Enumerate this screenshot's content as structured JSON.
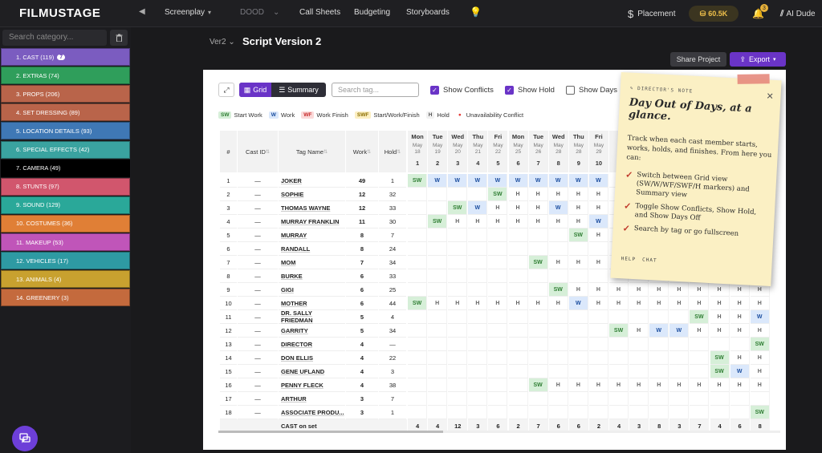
{
  "app": {
    "logo": "FILMUSTAGE"
  },
  "topnav": {
    "items": [
      {
        "label": "Screenplay",
        "caret": "▾"
      },
      {
        "label": "DOOD",
        "caret": "⌄"
      },
      {
        "label": "Call Sheets"
      },
      {
        "label": "Budgeting"
      },
      {
        "label": "Storyboards"
      }
    ],
    "placement": "Placement",
    "coins": "60.5K",
    "bell_count": "3",
    "ai": "AI Dude"
  },
  "sidebar": {
    "search_placeholder": "Search category...",
    "categories": [
      {
        "label": "1.  CAST (119)",
        "badge": "7",
        "color": "#7b5cc0"
      },
      {
        "label": "2.  EXTRAS (74)",
        "color": "#2f9e5b"
      },
      {
        "label": "3.  PROPS (206)",
        "color": "#b9644a"
      },
      {
        "label": "4.  SET DRESSING (89)",
        "color": "#b9644a"
      },
      {
        "label": "5.  LOCATION DETAILS (93)",
        "color": "#3f78b5"
      },
      {
        "label": "6.  SPECIAL EFFECTS (42)",
        "color": "#3aa3a0"
      },
      {
        "label": "7.  CAMERA (49)",
        "color": "#000000"
      },
      {
        "label": "8.  STUNTS (97)",
        "color": "#d1566d"
      },
      {
        "label": "9.  SOUND (129)",
        "color": "#2aa899"
      },
      {
        "label": "10.  COSTUMES (36)",
        "color": "#e07f36"
      },
      {
        "label": "11.  MAKEUP (53)",
        "color": "#c055b9"
      },
      {
        "label": "12.  VEHICLES (17)",
        "color": "#2e9aa3"
      },
      {
        "label": "13.  ANIMALS (4)",
        "color": "#c8a12f"
      },
      {
        "label": "14.  GREENERY (3)",
        "color": "#c46a3d"
      }
    ]
  },
  "header": {
    "version": "Ver2",
    "script_name": "Script Version 2",
    "share": "Share Project",
    "export": "Export"
  },
  "toolbar": {
    "grid": "Grid",
    "summary": "Summary",
    "search_placeholder": "Search tag...",
    "show_conflicts": "Show Conflicts",
    "show_hold": "Show Hold",
    "show_days_off": "Show Days"
  },
  "legend": [
    {
      "mark": "SW",
      "label": "Start Work",
      "bg": "#d6efd8",
      "fg": "#2e7d32"
    },
    {
      "mark": "W",
      "label": "Work",
      "bg": "#dbe8fb",
      "fg": "#1d4fa0"
    },
    {
      "mark": "WF",
      "label": "Work Finish",
      "bg": "#fbd9d9",
      "fg": "#c62828"
    },
    {
      "mark": "SWF",
      "label": "Start/Work/Finish",
      "bg": "#fcefc2",
      "fg": "#8a6d00"
    },
    {
      "mark": "H",
      "label": "Hold",
      "bg": "#f1f1f1",
      "fg": "#555"
    },
    {
      "mark": "●",
      "label": "Unavailability Conflict",
      "bg": "transparent",
      "fg": "#e53935"
    }
  ],
  "table": {
    "headers": {
      "num": "#",
      "castid": "Cast ID",
      "tag": "Tag Name",
      "work": "Work",
      "hold": "Hold"
    },
    "days": [
      {
        "dow": "Mon",
        "date": "May 18",
        "n": "1"
      },
      {
        "dow": "Tue",
        "date": "May 19",
        "n": "2"
      },
      {
        "dow": "Wed",
        "date": "May 20",
        "n": "3"
      },
      {
        "dow": "Thu",
        "date": "May 21",
        "n": "4"
      },
      {
        "dow": "Fri",
        "date": "May 22",
        "n": "5"
      },
      {
        "dow": "Mon",
        "date": "May 25",
        "n": "6"
      },
      {
        "dow": "Tue",
        "date": "May 26",
        "n": "7"
      },
      {
        "dow": "Wed",
        "date": "May 28",
        "n": "8"
      },
      {
        "dow": "Thu",
        "date": "May 28",
        "n": "9"
      },
      {
        "dow": "Fri",
        "date": "May 29",
        "n": "10"
      },
      {
        "dow": "",
        "date": "",
        "n": ""
      },
      {
        "dow": "",
        "date": "",
        "n": ""
      },
      {
        "dow": "",
        "date": "",
        "n": ""
      },
      {
        "dow": "",
        "date": "",
        "n": ""
      },
      {
        "dow": "",
        "date": "",
        "n": ""
      },
      {
        "dow": "",
        "date": "",
        "n": ""
      },
      {
        "dow": "",
        "date": "",
        "n": ""
      },
      {
        "dow": "",
        "date": "",
        "n": ""
      }
    ],
    "rows": [
      {
        "n": "1",
        "id": "—",
        "tag": "JOKER",
        "work": "49",
        "hold": "1",
        "cells": [
          "SW",
          "W",
          "W",
          "W",
          "W",
          "W",
          "W",
          "W",
          "W",
          "W",
          "",
          "",
          "",
          "",
          "",
          "",
          "",
          ""
        ]
      },
      {
        "n": "2",
        "id": "—",
        "tag": "SOPHIE",
        "work": "12",
        "hold": "32",
        "cells": [
          "",
          "",
          "",
          "",
          "SW",
          "H",
          "H",
          "H",
          "H",
          "H",
          "",
          "",
          "",
          "",
          "",
          "",
          "",
          ""
        ]
      },
      {
        "n": "3",
        "id": "—",
        "tag": "THOMAS WAYNE",
        "work": "12",
        "hold": "33",
        "cells": [
          "",
          "",
          "SW",
          "W",
          "H",
          "H",
          "H",
          "W",
          "H",
          "H",
          "",
          "",
          "",
          "",
          "",
          "",
          "",
          ""
        ]
      },
      {
        "n": "4",
        "id": "—",
        "tag": "MURRAY FRANKLIN",
        "work": "11",
        "hold": "30",
        "cells": [
          "",
          "SW",
          "H",
          "H",
          "H",
          "H",
          "H",
          "H",
          "H",
          "W",
          "",
          "",
          "",
          "",
          "",
          "",
          "",
          ""
        ]
      },
      {
        "n": "5",
        "id": "—",
        "tag": "MURRAY",
        "work": "8",
        "hold": "7",
        "cells": [
          "",
          "",
          "",
          "",
          "",
          "",
          "",
          "",
          "SW",
          "H",
          "",
          "",
          "",
          "",
          "",
          "",
          "",
          ""
        ]
      },
      {
        "n": "6",
        "id": "—",
        "tag": "RANDALL",
        "work": "8",
        "hold": "24",
        "cells": [
          "",
          "",
          "",
          "",
          "",
          "",
          "",
          "",
          "",
          "",
          "",
          "",
          "",
          "",
          "",
          "",
          "",
          ""
        ]
      },
      {
        "n": "7",
        "id": "—",
        "tag": "MOM",
        "work": "7",
        "hold": "34",
        "cells": [
          "",
          "",
          "",
          "",
          "",
          "",
          "SW",
          "H",
          "H",
          "H",
          "",
          "",
          "",
          "",
          "",
          "",
          "",
          ""
        ]
      },
      {
        "n": "8",
        "id": "—",
        "tag": "BURKE",
        "work": "6",
        "hold": "33",
        "cells": [
          "",
          "",
          "",
          "",
          "",
          "",
          "",
          "",
          "",
          "",
          "",
          "",
          "",
          "",
          "",
          "",
          "",
          ""
        ]
      },
      {
        "n": "9",
        "id": "—",
        "tag": "GIGI",
        "work": "6",
        "hold": "25",
        "cells": [
          "",
          "",
          "",
          "",
          "",
          "",
          "",
          "SW",
          "H",
          "H",
          "H",
          "H",
          "H",
          "H",
          "H",
          "H",
          "H",
          "H"
        ]
      },
      {
        "n": "10",
        "id": "—",
        "tag": "MOTHER",
        "work": "6",
        "hold": "44",
        "cells": [
          "SW",
          "H",
          "H",
          "H",
          "H",
          "H",
          "H",
          "H",
          "W",
          "H",
          "H",
          "H",
          "H",
          "H",
          "H",
          "H",
          "H",
          "H"
        ]
      },
      {
        "n": "11",
        "id": "—",
        "tag": "DR. SALLY FRIEDMAN",
        "work": "5",
        "hold": "4",
        "cells": [
          "",
          "",
          "",
          "",
          "",
          "",
          "",
          "",
          "",
          "",
          "",
          "",
          "",
          "",
          "SW",
          "H",
          "H",
          "W"
        ]
      },
      {
        "n": "12",
        "id": "—",
        "tag": "GARRITY",
        "work": "5",
        "hold": "34",
        "cells": [
          "",
          "",
          "",
          "",
          "",
          "",
          "",
          "",
          "",
          "",
          "SW",
          "H",
          "W",
          "W",
          "H",
          "H",
          "H",
          "H"
        ]
      },
      {
        "n": "13",
        "id": "—",
        "tag": "DIRECTOR",
        "work": "4",
        "hold": "—",
        "cells": [
          "",
          "",
          "",
          "",
          "",
          "",
          "",
          "",
          "",
          "",
          "",
          "",
          "",
          "",
          "",
          "",
          "",
          "SW"
        ]
      },
      {
        "n": "14",
        "id": "—",
        "tag": "DON ELLIS",
        "work": "4",
        "hold": "22",
        "cells": [
          "",
          "",
          "",
          "",
          "",
          "",
          "",
          "",
          "",
          "",
          "",
          "",
          "",
          "",
          "",
          "SW",
          "H",
          "H"
        ]
      },
      {
        "n": "15",
        "id": "—",
        "tag": "GENE UFLAND",
        "work": "4",
        "hold": "3",
        "cells": [
          "",
          "",
          "",
          "",
          "",
          "",
          "",
          "",
          "",
          "",
          "",
          "",
          "",
          "",
          "",
          "SW",
          "W",
          "H"
        ]
      },
      {
        "n": "16",
        "id": "—",
        "tag": "PENNY FLECK",
        "work": "4",
        "hold": "38",
        "cells": [
          "",
          "",
          "",
          "",
          "",
          "",
          "SW",
          "H",
          "H",
          "H",
          "H",
          "H",
          "H",
          "H",
          "H",
          "H",
          "H",
          "H"
        ]
      },
      {
        "n": "17",
        "id": "—",
        "tag": "ARTHUR",
        "work": "3",
        "hold": "7",
        "cells": [
          "",
          "",
          "",
          "",
          "",
          "",
          "",
          "",
          "",
          "",
          "",
          "",
          "",
          "",
          "",
          "",
          "",
          ""
        ]
      },
      {
        "n": "18",
        "id": "—",
        "tag": "ASSOCIATE PRODU...",
        "work": "3",
        "hold": "1",
        "cells": [
          "",
          "",
          "",
          "",
          "",
          "",
          "",
          "",
          "",
          "",
          "",
          "",
          "",
          "",
          "",
          "",
          "",
          "SW"
        ]
      }
    ],
    "footer_label": "CAST on set",
    "footer_counts": [
      "4",
      "4",
      "12",
      "3",
      "6",
      "2",
      "7",
      "6",
      "6",
      "2",
      "4",
      "3",
      "8",
      "3",
      "7",
      "4",
      "6",
      "8"
    ]
  },
  "note": {
    "label": "✎ DIRECTOR'S NOTE",
    "title": "Day Out of Days, at a glance.",
    "body": "Track when each cast member starts, works, holds, and finishes. From here you can:",
    "items": [
      "Switch between Grid view (SW/W/WF/SWF/H markers) and Summary view",
      "Toggle Show Conflicts, Show Hold, and Show Days Off",
      "Search by tag or go fullscreen"
    ],
    "help": "HELP",
    "chat": "CHAT"
  }
}
